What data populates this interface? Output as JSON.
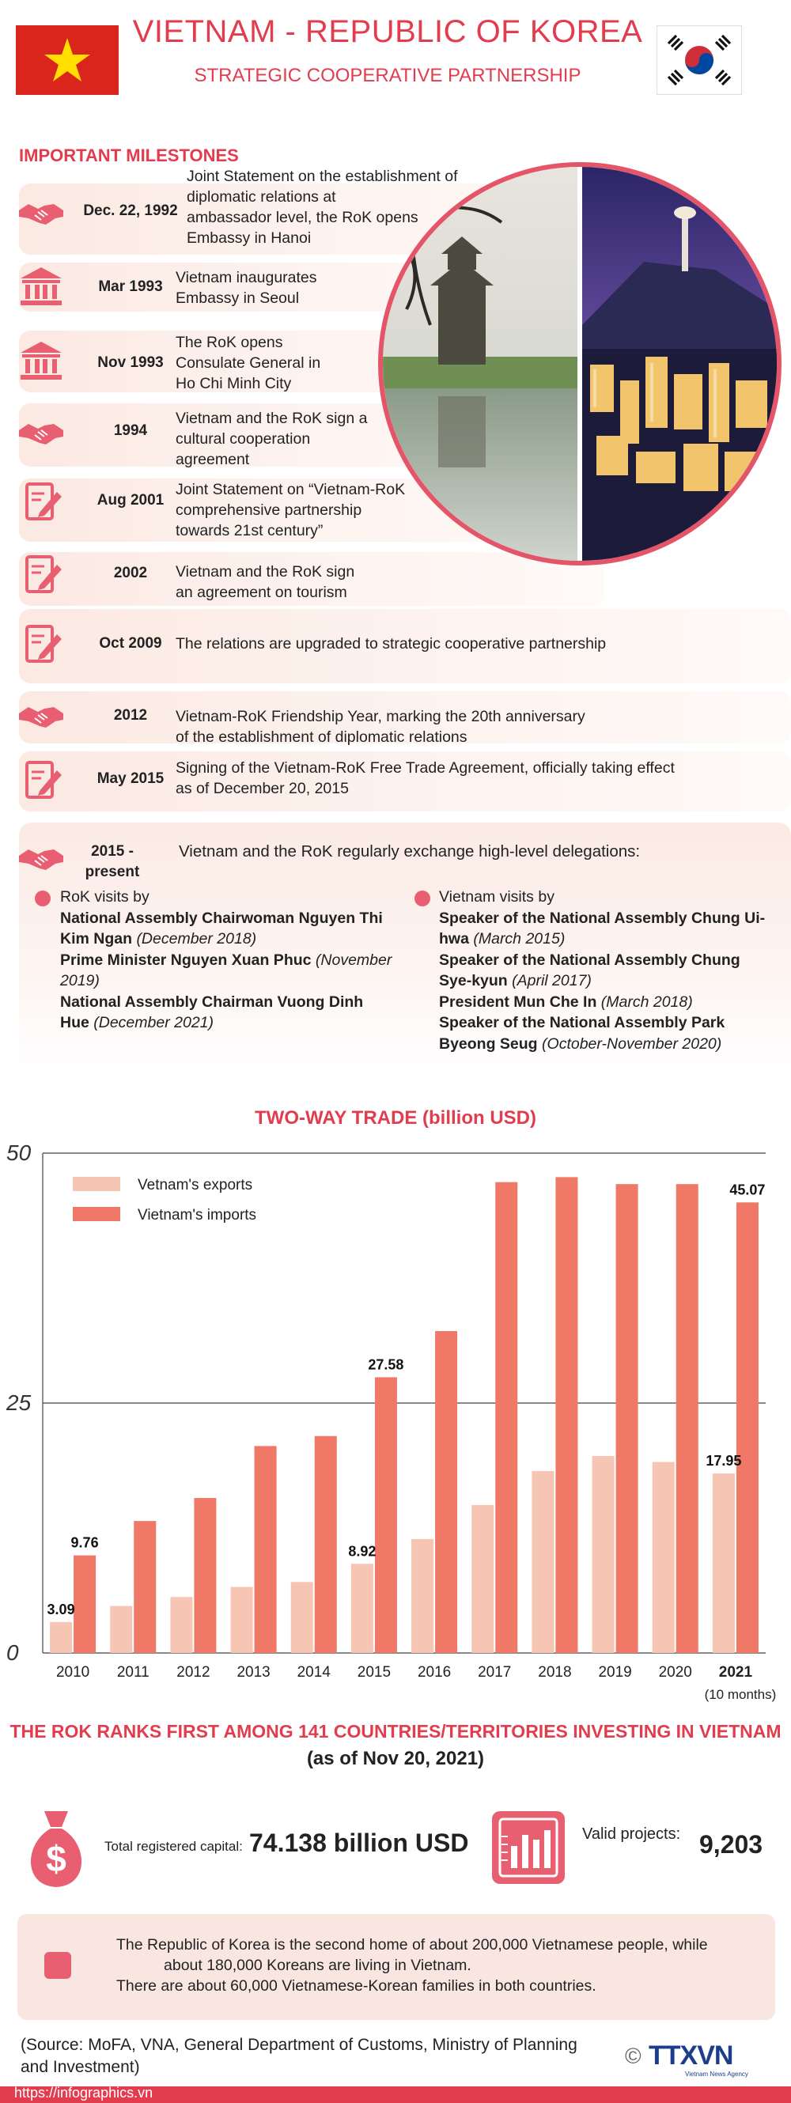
{
  "header": {
    "title": "VIETNAM - REPUBLIC OF KOREA",
    "subtitle": "STRATEGIC COOPERATIVE PARTNERSHIP"
  },
  "milestones_title": "IMPORTANT MILESTONES",
  "milestones": [
    {
      "icon": "handshake-icon",
      "date": "Dec. 22, 1992",
      "lines": [
        "Joint Statement on the establishment of",
        "diplomatic relations at",
        "ambassador level, the RoK opens",
        "Embassy in Hanoi"
      ]
    },
    {
      "icon": "embassy-icon",
      "date": "Mar 1993",
      "lines": [
        "Vietnam inaugurates",
        "Embassy in Seoul"
      ]
    },
    {
      "icon": "embassy-icon",
      "date": "Nov 1993",
      "lines": [
        "The RoK opens",
        "Consulate General in",
        "Ho Chi Minh City"
      ]
    },
    {
      "icon": "handshake-icon",
      "date": "1994",
      "lines": [
        "Vietnam and the RoK sign a",
        "cultural cooperation",
        "agreement"
      ]
    },
    {
      "icon": "document-sign-icon",
      "date": "Aug 2001",
      "lines": [
        "Joint Statement on “Vietnam-RoK",
        "comprehensive partnership",
        "towards 21st century”"
      ]
    },
    {
      "icon": "document-sign-icon",
      "date": "2002",
      "lines": [
        "Vietnam and the RoK sign",
        "an agreement on tourism"
      ]
    },
    {
      "icon": "document-sign-icon",
      "date": "Oct 2009",
      "lines": [
        "The relations are upgraded to strategic cooperative partnership"
      ]
    },
    {
      "icon": "handshake-icon",
      "date": "2012",
      "lines": [
        "Vietnam-RoK Friendship Year, marking the 20th anniversary",
        "of the establishment of diplomatic relations"
      ]
    },
    {
      "icon": "document-sign-icon",
      "date": "May 2015",
      "lines": [
        "Signing of the Vietnam-RoK Free Trade Agreement, officially taking effect",
        "as of December 20, 2015"
      ]
    }
  ],
  "delegations": {
    "date_line1": "2015 -",
    "date_line2": "present",
    "intro": "Vietnam and the RoK regularly exchange high-level delegations:",
    "rok_heading": "RoK visits by",
    "vn_heading": "Vietnam visits by",
    "rok_visits": [
      {
        "name": "National Assembly Chairwoman Nguyen Thi Kim Ngan",
        "when": "(December 2018)"
      },
      {
        "name": "Prime Minister Nguyen Xuan Phuc",
        "when": "(November 2019)"
      },
      {
        "name": "National Assembly Chairman Vuong Dinh Hue",
        "when": "(December 2021)"
      }
    ],
    "vn_visits": [
      {
        "name": "Speaker of the National Assembly Chung Ui-hwa",
        "when": "(March 2015)"
      },
      {
        "name": "Speaker of the National Assembly Chung Sye-kyun",
        "when": "(April 2017)"
      },
      {
        "name": "President Mun Che In",
        "when": "(March 2018)"
      },
      {
        "name": "Speaker of the National Assembly Park Byeong Seug",
        "when": "(October-November 2020)"
      }
    ]
  },
  "chart_data": {
    "type": "bar",
    "title": "TWO-WAY TRADE  (billion USD)",
    "categories": [
      "2010",
      "2011",
      "2012",
      "2013",
      "2014",
      "2015",
      "2016",
      "2017",
      "2018",
      "2019",
      "2020",
      "2021"
    ],
    "category_note": "(10 months)",
    "series": [
      {
        "name": "Vetnam's exports",
        "color": "#f6c5b3",
        "values": [
          3.09,
          4.7,
          5.6,
          6.6,
          7.1,
          8.92,
          11.4,
          14.8,
          18.2,
          19.7,
          19.1,
          17.95
        ]
      },
      {
        "name": "Vietnam's imports",
        "color": "#ef7866",
        "values": [
          9.76,
          13.2,
          15.5,
          20.7,
          21.7,
          27.58,
          32.2,
          47.1,
          47.6,
          46.9,
          46.9,
          45.07
        ]
      }
    ],
    "data_labels": [
      {
        "series": 0,
        "index": 0,
        "text": "3.09"
      },
      {
        "series": 1,
        "index": 0,
        "text": "9.76"
      },
      {
        "series": 0,
        "index": 5,
        "text": "8.92"
      },
      {
        "series": 1,
        "index": 5,
        "text": "27.58"
      },
      {
        "series": 0,
        "index": 11,
        "text": "17.95"
      },
      {
        "series": 1,
        "index": 11,
        "text": "45.07"
      }
    ],
    "ylim": [
      0,
      50
    ],
    "yticks": [
      "0",
      "25",
      "50"
    ],
    "grid": true,
    "legend_position": "top-left"
  },
  "investment": {
    "heading": "THE ROK RANKS FIRST AMONG 141 COUNTRIES/TERRITORIES INVESTING IN VIETNAM",
    "subheading": "(as of Nov 20, 2021)",
    "capital_label": "Total registered capital:",
    "capital_value": "74.138 billion USD",
    "projects_label": "Valid projects:",
    "projects_value": "9,203"
  },
  "note": {
    "line1": "The Republic of Korea is the second home of about 200,000 Vietnamese people, while",
    "line2": "about 180,000 Koreans are living in Vietnam.",
    "line3": "There are about 60,000 Vietnamese-Korean families in both countries."
  },
  "footer": {
    "source": "(Source: MoFA, VNA, General Department of Customs, Ministry of Planning and Investment)",
    "agency": "TTXVN",
    "agency_sub": "Vietnam News Agency",
    "url": "https://infographics.vn"
  },
  "colors": {
    "accent": "#e23d4e",
    "exports": "#f6c5b3",
    "imports": "#ef7866"
  }
}
